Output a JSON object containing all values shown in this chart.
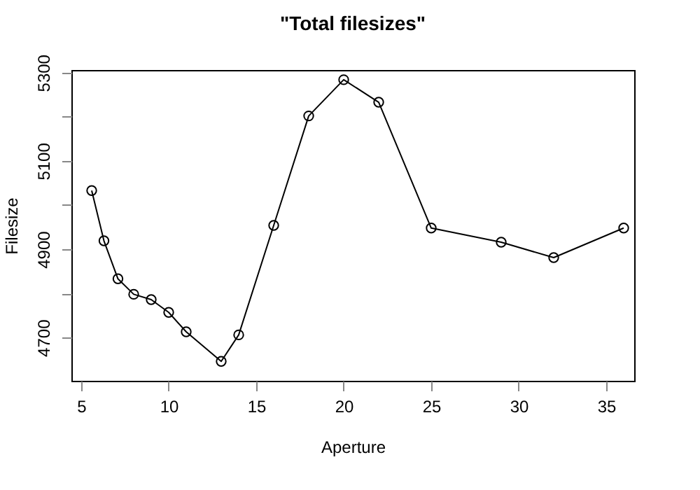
{
  "chart_data": {
    "type": "line",
    "title": "\"Total filesizes\"",
    "xlabel": "Aperture",
    "ylabel": "Filesize",
    "x": [
      5.6,
      6.3,
      7.1,
      8,
      9,
      10,
      11,
      13,
      14,
      16,
      18,
      20,
      22,
      25,
      29,
      32,
      36
    ],
    "series": [
      {
        "color": "#000000",
        "values": [
          5033,
          4919,
          4833,
          4798,
          4786,
          4757,
          4713,
          4646,
          4706,
          4954,
          5202,
          5284,
          5233,
          4948,
          4916,
          4881,
          4948
        ]
      }
    ],
    "xlim": [
      4.44,
      36.6
    ],
    "xticks": [
      5,
      10,
      15,
      20,
      25,
      30,
      35
    ],
    "ylim": [
      4602,
      5306
    ],
    "yticks": [
      4700,
      {
        "value": 4800,
        "label": null
      },
      4900,
      {
        "value": 5000,
        "label": null
      },
      5100,
      {
        "value": 5200,
        "label": null
      },
      5300
    ],
    "grid": false,
    "marker": "circle",
    "line_style": "solid"
  }
}
